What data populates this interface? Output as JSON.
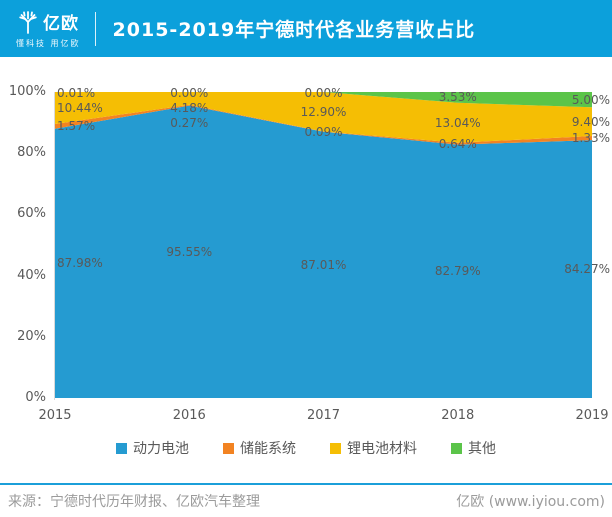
{
  "header": {
    "logo_text": "亿欧",
    "logo_tagline": "懂科技 用亿欧",
    "title": "2015-2019年宁德时代各业务营收占比"
  },
  "colors": {
    "banner": "#0ca0db",
    "footer_divider": "#1b9fd9",
    "label_text": "#595959",
    "footer_text": "#9b9b9b"
  },
  "chart_data": {
    "type": "area",
    "stacked": true,
    "percent": true,
    "title": "2015-2019年宁德时代各业务营收占比",
    "x": [
      "2015",
      "2016",
      "2017",
      "2018",
      "2019"
    ],
    "series": [
      {
        "name": "动力电池",
        "color": "#259bd1",
        "values": [
          87.98,
          95.55,
          87.01,
          82.79,
          84.27
        ]
      },
      {
        "name": "储能系统",
        "color": "#f28322",
        "values": [
          1.57,
          0.27,
          0.09,
          0.64,
          1.33
        ]
      },
      {
        "name": "锂电池材料",
        "color": "#f5be04",
        "values": [
          10.44,
          4.18,
          12.9,
          13.04,
          9.4
        ]
      },
      {
        "name": "其他",
        "color": "#5bc449",
        "values": [
          0.01,
          0.0,
          0.0,
          3.53,
          5.0
        ]
      }
    ],
    "ylim": [
      0,
      100
    ],
    "y_ticks": [
      "0%",
      "20%",
      "40%",
      "60%",
      "80%",
      "100%"
    ],
    "grid": false,
    "legend_position": "bottom",
    "value_label_format": "0.00%"
  },
  "footer": {
    "source": "来源：宁德时代历年财报、亿欧汽车整理",
    "brand": "亿欧 (www.iyiou.com)"
  }
}
